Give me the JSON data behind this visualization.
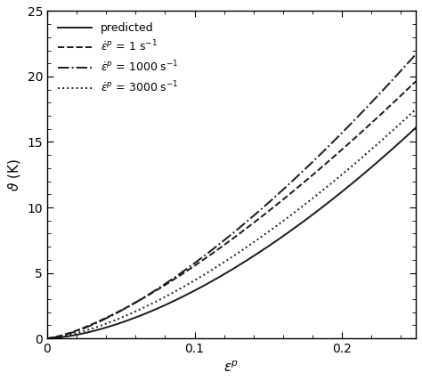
{
  "title": "",
  "xlabel": "$\\varepsilon^{p}$",
  "ylabel": "$\\vartheta$ (K)",
  "xlim": [
    0,
    0.25
  ],
  "ylim": [
    0,
    25
  ],
  "yticks": [
    0,
    5,
    10,
    15,
    20,
    25
  ],
  "xticks": [
    0.0,
    0.1,
    0.2
  ],
  "background_color": "#ffffff",
  "line_params": [
    {
      "label": "predicted",
      "ls": "-",
      "power": 1.62,
      "scale": 152.0
    },
    {
      "label": "$\\dot{\\varepsilon}^{p}$ = 1 s$^{-1}$",
      "ls": "--",
      "power": 1.38,
      "scale": 133.0
    },
    {
      "label": "$\\dot{\\varepsilon}^{p}$ = 1000 s$^{-1}$",
      "ls": "-.",
      "power": 1.45,
      "scale": 162.0
    },
    {
      "label": "$\\dot{\\varepsilon}^{p}$ = 3000 s$^{-1}$",
      "ls": ":",
      "power": 1.5,
      "scale": 140.0
    }
  ],
  "line_color": "#1a1a1a",
  "linewidth": 1.4,
  "legend_loc": "upper left",
  "legend_fontsize": 9,
  "axis_fontsize": 11,
  "tick_fontsize": 10
}
